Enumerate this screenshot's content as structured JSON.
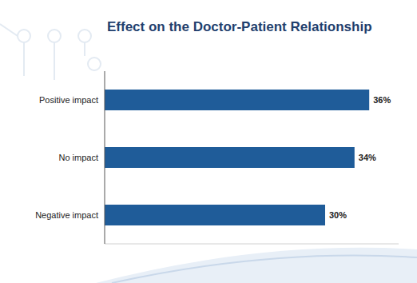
{
  "chart_data": {
    "type": "bar",
    "title": "Effect on the Doctor-Patient Relationship",
    "orientation": "horizontal",
    "categories": [
      "Positive impact",
      "No impact",
      "Negative impact"
    ],
    "values": [
      36,
      34,
      30
    ],
    "value_labels": [
      "36%",
      "34%",
      "30%"
    ],
    "color": "#1f5c99",
    "xlim": [
      0,
      40
    ],
    "data_labels": true,
    "tick_labels": "y",
    "grid": false
  }
}
